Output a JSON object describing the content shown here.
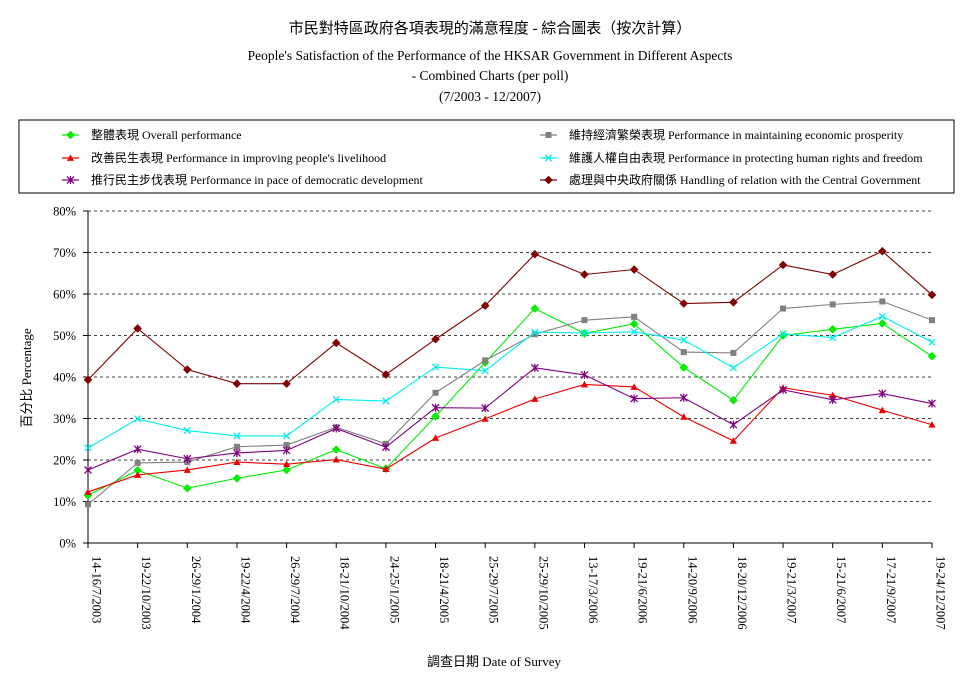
{
  "chart_data": {
    "type": "line",
    "title_lines": [
      "市民對特區政府各項表現的滿意程度 - 綜合圖表（按次計算）",
      "People's Satisfaction of the Performance of the HKSAR Government in Different Aspects",
      "- Combined Charts (per poll)",
      "(7/2003 - 12/2007)"
    ],
    "xlabel": "調查日期 Date of Survey",
    "ylabel": "百分比 Percentage",
    "ylim": [
      0,
      80
    ],
    "yticks": [
      "0%",
      "10%",
      "20%",
      "30%",
      "40%",
      "50%",
      "60%",
      "70%",
      "80%"
    ],
    "grid": "horizontal dashed",
    "legend_position": "top",
    "categories": [
      "14-16/7/2003",
      "19-22/10/2003",
      "26-29/1/2004",
      "19-22/4/2004",
      "26-29/7/2004",
      "18-21/10/2004",
      "24-25/1/2005",
      "18-21/4/2005",
      "25-29/7/2005",
      "25-29/10/2005",
      "13-17/3/2006",
      "19-21/6/2006",
      "14-20/9/2006",
      "18-20/12/2006",
      "19-21/3/2007",
      "15-21/6/2007",
      "17-21/9/2007",
      "19-24/12/2007"
    ],
    "series": [
      {
        "name": "整體表現 Overall performance",
        "color": "#00ee00",
        "marker": "diamond",
        "values": [
          11.5,
          17.5,
          13.2,
          15.6,
          17.6,
          22.5,
          17.9,
          30.5,
          43.5,
          56.5,
          50.5,
          52.8,
          42.3,
          34.4,
          50.0,
          51.5,
          52.9,
          45.0
        ]
      },
      {
        "name": "維持經濟繁榮表現 Performance in maintaining economic prosperity",
        "color": "#808080",
        "marker": "square",
        "values": [
          9.3,
          19.3,
          19.5,
          23.2,
          23.6,
          27.9,
          23.9,
          36.2,
          44.0,
          50.3,
          53.7,
          54.5,
          46.0,
          45.8,
          56.5,
          57.5,
          58.2,
          53.7
        ]
      },
      {
        "name": "改善民生表現 Performance in improving people's livelihood",
        "color": "#ee0000",
        "marker": "triangle",
        "values": [
          12.3,
          16.4,
          17.6,
          19.5,
          19.0,
          20.1,
          17.8,
          25.3,
          29.9,
          34.7,
          38.2,
          37.6,
          30.4,
          24.6,
          37.4,
          35.6,
          32.0,
          28.5
        ]
      },
      {
        "name": "維護人權自由表現 Performance in protecting human rights and freedom",
        "color": "#00eeee",
        "marker": "x",
        "values": [
          22.9,
          29.9,
          27.1,
          25.8,
          25.8,
          34.6,
          34.2,
          42.4,
          41.5,
          50.8,
          50.6,
          50.9,
          48.9,
          42.2,
          50.4,
          49.5,
          54.6,
          48.4
        ]
      },
      {
        "name": "推行民主步伐表現 Performance in pace of democratic development",
        "color": "#800080",
        "marker": "star",
        "values": [
          17.6,
          22.6,
          20.3,
          21.7,
          22.3,
          27.6,
          23.1,
          32.6,
          32.5,
          42.2,
          40.5,
          34.8,
          35.0,
          28.5,
          36.9,
          34.5,
          36.0,
          33.6
        ]
      },
      {
        "name": "處理與中央政府關係 Handling of relation with the Central Government",
        "color": "#800000",
        "marker": "diamond",
        "values": [
          39.3,
          51.7,
          41.8,
          38.4,
          38.4,
          48.2,
          40.6,
          49.1,
          57.2,
          69.6,
          64.7,
          65.9,
          57.7,
          58.0,
          67.0,
          64.7,
          70.3,
          59.8
        ]
      }
    ]
  }
}
